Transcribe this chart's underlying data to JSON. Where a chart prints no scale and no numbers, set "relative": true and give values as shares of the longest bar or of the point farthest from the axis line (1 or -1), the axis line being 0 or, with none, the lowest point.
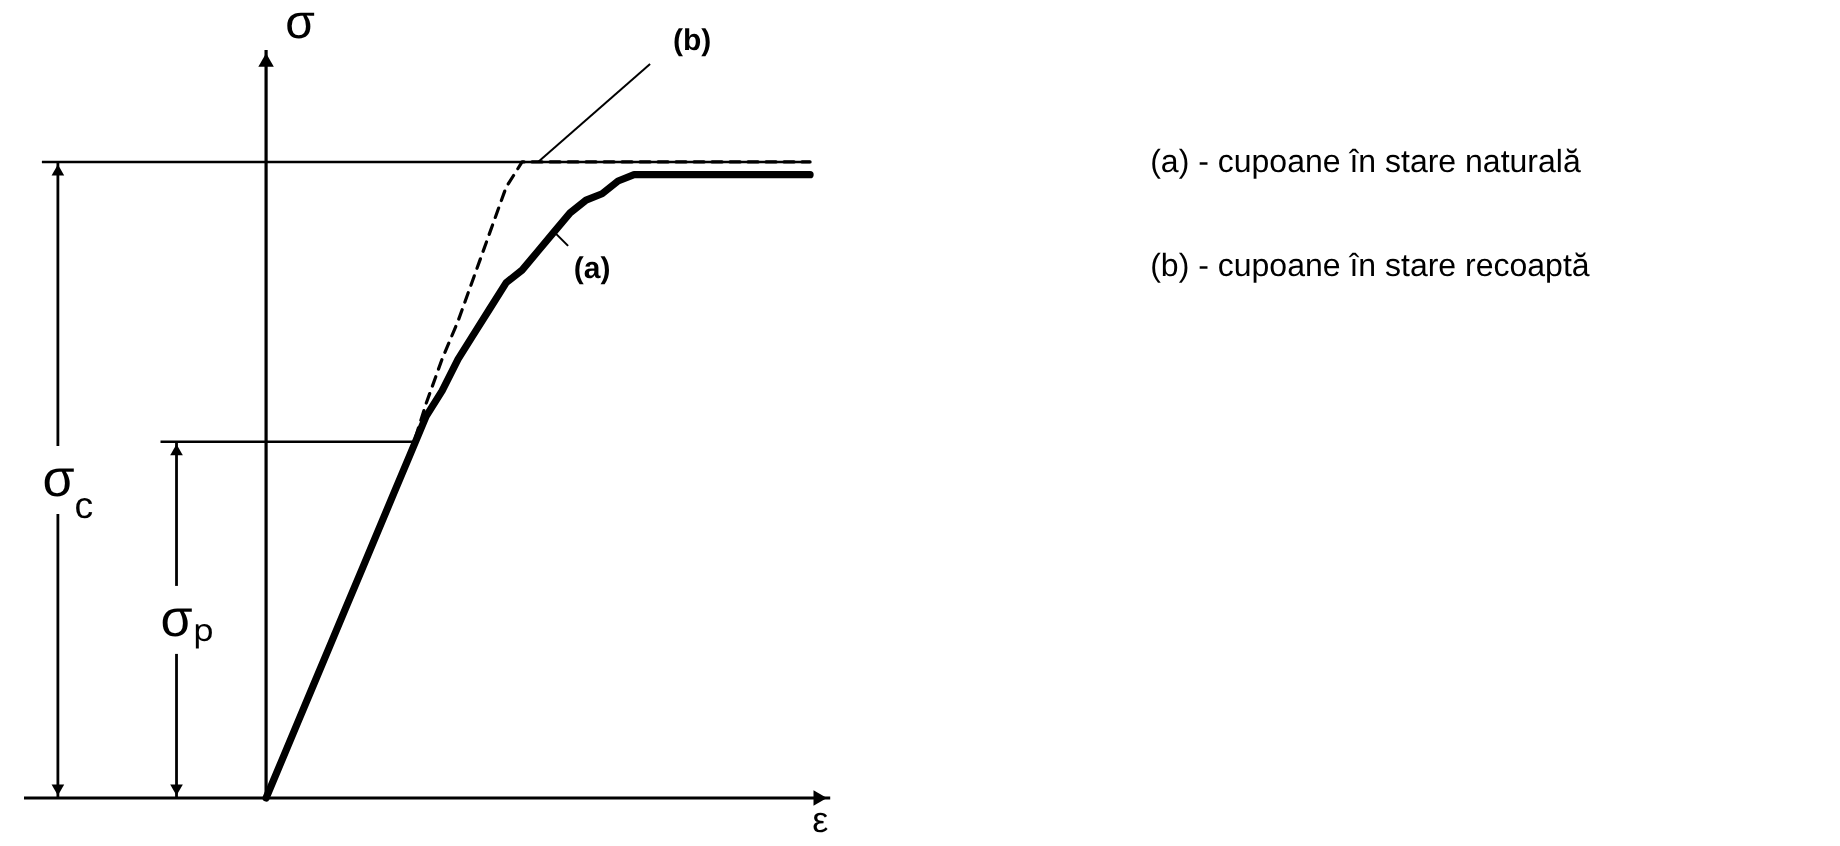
{
  "chart_data": {
    "type": "line",
    "relative": true,
    "xlabel": "ε",
    "ylabel": "σ",
    "categories": [
      null,
      null,
      null,
      null,
      null,
      null,
      null,
      null,
      null,
      null,
      null,
      null,
      null,
      null,
      null,
      null,
      null,
      null,
      null,
      null,
      null,
      null,
      null,
      null,
      null,
      null,
      null,
      null,
      null,
      null,
      null,
      null,
      null,
      null,
      null
    ],
    "series": [
      {
        "name": "(a)",
        "color": "#000000",
        "line_style": "solid",
        "values": [
          0,
          0.06,
          0.12,
          0.18,
          0.24,
          0.3,
          0.36,
          0.42,
          0.48,
          0.54,
          0.6,
          0.64,
          0.69,
          0.73,
          0.77,
          0.81,
          0.83,
          0.86,
          0.89,
          0.92,
          0.94,
          0.95,
          0.97,
          0.98,
          0.98,
          0.98,
          0.98,
          0.98,
          0.98,
          0.98,
          0.98,
          0.98,
          0.98,
          0.98,
          0.98
        ]
      },
      {
        "name": "(b)",
        "color": "#000000",
        "line_style": "dashed",
        "values": [
          null,
          null,
          null,
          null,
          null,
          null,
          null,
          null,
          null,
          0.54,
          0.62,
          0.69,
          0.75,
          0.82,
          0.89,
          0.96,
          1,
          1,
          1,
          1,
          1,
          1,
          1,
          1,
          1,
          1,
          1,
          1,
          1,
          1,
          1,
          1,
          1,
          1,
          1
        ]
      }
    ],
    "ref_lines": [
      {
        "axis": "y",
        "value": 1,
        "label": "σ$_{c}$"
      },
      {
        "axis": "y",
        "value": 0.56,
        "label": "σₚ"
      }
    ],
    "annotations": [
      "(a) - cupoane în stare naturală",
      "(b) - cupoane în stare recoaptă"
    ]
  }
}
